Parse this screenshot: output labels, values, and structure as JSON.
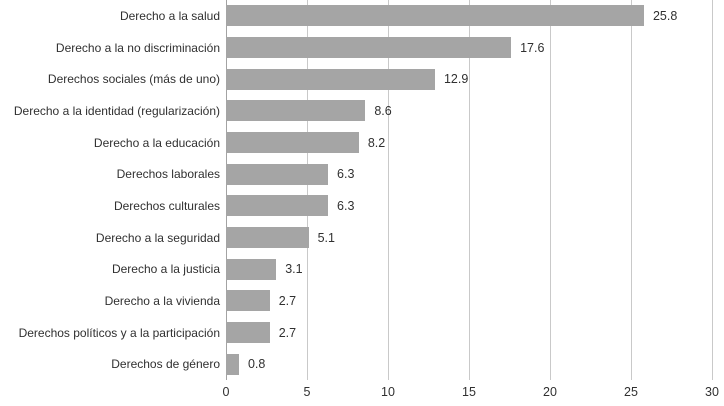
{
  "chart_data": {
    "type": "bar",
    "orientation": "horizontal",
    "title": "",
    "xlabel": "",
    "ylabel": "",
    "categories": [
      "Derecho a la salud",
      "Derecho a la no discriminación",
      "Derechos sociales (más de uno)",
      "Derecho a la identidad (regularización)",
      "Derecho a la educación",
      "Derechos laborales",
      "Derechos culturales",
      "Derecho a la seguridad",
      "Derecho a la justicia",
      "Derecho a la vivienda",
      "Derechos políticos y a la participación",
      "Derechos de género"
    ],
    "values": [
      25.8,
      17.6,
      12.9,
      8.6,
      8.2,
      6.3,
      6.3,
      5.1,
      3.1,
      2.7,
      2.7,
      0.8
    ],
    "value_labels": [
      "25.8",
      "17.6",
      "12.9",
      "8.6",
      "8.2",
      "6.3",
      "6.3",
      "5.1",
      "3.1",
      "2.7",
      "2.7",
      "0.8"
    ],
    "xlim": [
      0,
      30
    ],
    "xticks": [
      "0",
      "5",
      "10",
      "15",
      "20",
      "25",
      "30"
    ],
    "grid": "vertical-on",
    "legend": "none",
    "colors": {
      "bar": "#a5a5a5",
      "gridline": "#c9c9c9",
      "zero_line": "#a3a3a3",
      "text": "#303030",
      "background": "#ffffff"
    }
  }
}
